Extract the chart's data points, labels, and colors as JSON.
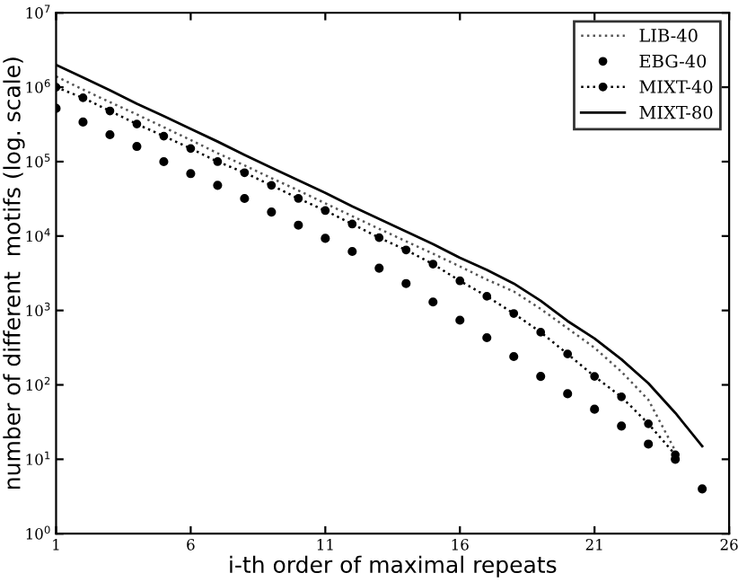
{
  "chart_data": {
    "type": "line",
    "xlabel": "i-th order of maximal repeats",
    "ylabel": "number of different  motifs (log. scale)",
    "x": [
      1,
      2,
      3,
      4,
      5,
      6,
      7,
      8,
      9,
      10,
      11,
      12,
      13,
      14,
      15,
      16,
      17,
      18,
      19,
      20,
      21,
      22,
      23,
      24,
      25
    ],
    "log": "y",
    "xlim": [
      1,
      26
    ],
    "xticks": [
      1,
      6,
      11,
      16,
      21,
      26
    ],
    "ylim": [
      1,
      10000000
    ],
    "yticks": [
      {
        "value": 1,
        "label": "10$^{0}$"
      },
      {
        "value": 10,
        "label": "10$^{1}$"
      },
      {
        "value": 100,
        "label": "10$^{2}$"
      },
      {
        "value": 1000,
        "label": "10$^{3}$"
      },
      {
        "value": 10000,
        "label": "10$^{4}$"
      },
      {
        "value": 100000,
        "label": "10$^{5}$"
      },
      {
        "value": 1000000,
        "label": "10$^{6}$"
      },
      {
        "value": 10000000,
        "label": "10$^{7}$"
      }
    ],
    "grid": false,
    "legend": "top right",
    "series": [
      {
        "name": "LIB-40",
        "line_style": "dotted",
        "marker": "none",
        "color": "#555555",
        "x": [
          1,
          2,
          3,
          4,
          5,
          6,
          7,
          8,
          9,
          10,
          11,
          12,
          13,
          14,
          15,
          16,
          17,
          18,
          19,
          20,
          21,
          22,
          23,
          24
        ],
        "values": [
          1400000,
          930000,
          630000,
          430000,
          290000,
          195000,
          130000,
          89000,
          60000,
          41000,
          27500,
          18500,
          12500,
          8500,
          5800,
          3900,
          2600,
          1800,
          1050,
          575,
          315,
          150,
          63,
          13
        ]
      },
      {
        "name": "EBG-40",
        "type": "scatter",
        "marker": "circle",
        "color": "#000000",
        "values": [
          520000,
          340000,
          230000,
          160000,
          100000,
          69000,
          48000,
          32000,
          21000,
          14000,
          9300,
          6200,
          3700,
          2300,
          1300,
          740,
          430,
          240,
          130,
          76,
          47,
          28,
          16,
          10,
          4
        ]
      },
      {
        "name": "MIXT-40",
        "line_style": "dotted",
        "marker": "circle",
        "color": "#000000",
        "x": [
          1,
          2,
          3,
          4,
          5,
          6,
          7,
          8,
          9,
          10,
          11,
          12,
          13,
          14,
          15,
          16,
          17,
          18,
          19,
          20,
          21,
          22,
          23,
          24
        ],
        "values": [
          1000000,
          720000,
          480000,
          320000,
          220000,
          150000,
          100000,
          71000,
          48000,
          32000,
          22000,
          14500,
          9500,
          6500,
          4200,
          2500,
          1550,
          910,
          510,
          260,
          130,
          69,
          30,
          11.5
        ]
      },
      {
        "name": "MIXT-80",
        "line_style": "solid",
        "marker": "none",
        "color": "#000000",
        "values": [
          2000000,
          1350000,
          910000,
          600000,
          410000,
          275000,
          186000,
          123000,
          83000,
          56000,
          38000,
          25000,
          17000,
          11500,
          7800,
          5100,
          3500,
          2300,
          1350,
          720,
          420,
          220,
          105,
          42,
          15
        ]
      }
    ]
  }
}
